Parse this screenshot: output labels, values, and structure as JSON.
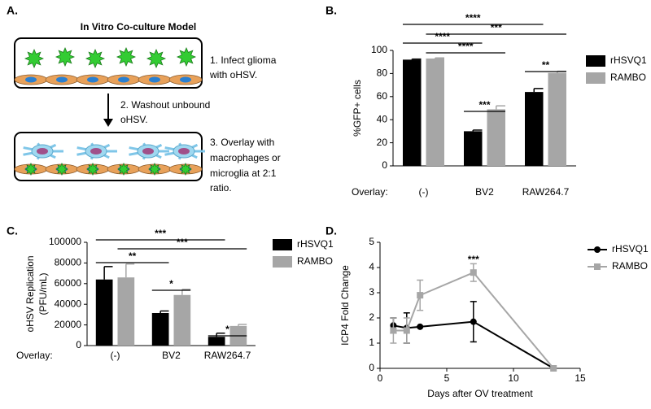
{
  "diagram": {
    "panel": "A.",
    "title": "In Vitro Co-culture Model",
    "steps": [
      [
        "1. Infect glioma",
        "with oHSV."
      ],
      [
        "2. Washout unbound",
        "oHSV."
      ],
      [
        "3. Overlay with",
        "macrophages or",
        "microglia at 2:1",
        "ratio."
      ]
    ]
  },
  "chart_data": [
    {
      "type": "bar",
      "panel": "B.",
      "ylabel": [
        "%GFP+ cells"
      ],
      "xlabel": "Overlay:",
      "categories": [
        "(-)",
        "BV2",
        "RAW264.7"
      ],
      "series": [
        {
          "name": "rHSVQ1",
          "color": "#000000",
          "values": [
            92,
            30,
            64
          ],
          "errors": [
            0.5,
            1,
            3
          ]
        },
        {
          "name": "RAMBO",
          "color": "#a6a6a6",
          "values": [
            93,
            49,
            80.5
          ],
          "errors": [
            0.5,
            3,
            1.5
          ]
        }
      ],
      "ylim": [
        0,
        100
      ],
      "yticks": [
        0,
        20,
        40,
        60,
        80,
        100
      ],
      "annotations": [
        "****",
        "***",
        "****",
        "****",
        "***",
        "**"
      ]
    },
    {
      "type": "bar",
      "panel": "C.",
      "ylabel": [
        "oHSV  Replication",
        "(PFU/mL)"
      ],
      "xlabel": "Overlay:",
      "categories": [
        "(-)",
        "BV2",
        "RAW264.7"
      ],
      "series": [
        {
          "name": "rHSVQ1",
          "color": "#000000",
          "values": [
            64000,
            31500,
            8500
          ],
          "errors": [
            12500,
            2000,
            3500
          ]
        },
        {
          "name": "RAMBO",
          "color": "#a6a6a6",
          "values": [
            66000,
            49000,
            19000
          ],
          "errors": [
            13000,
            5500,
            1500
          ]
        }
      ],
      "ylim": [
        0,
        100000
      ],
      "yticks": [
        0,
        20000,
        40000,
        60000,
        80000,
        100000
      ],
      "annotations": [
        "***",
        "***",
        "**",
        "*",
        "*"
      ]
    },
    {
      "type": "line",
      "panel": "D.",
      "ylabel": [
        "ICP4 Fold  Change"
      ],
      "xlabel": "Days after OV treatment",
      "series": [
        {
          "name": "rHSVQ1",
          "color": "#000000",
          "marker": "circle",
          "x": [
            1,
            2,
            3,
            7,
            13
          ],
          "values": [
            1.7,
            1.6,
            1.65,
            1.85,
            0
          ],
          "errors": [
            0.3,
            0.6,
            0,
            0.8,
            0
          ]
        },
        {
          "name": "RAMBO",
          "color": "#a6a6a6",
          "marker": "square",
          "x": [
            1,
            2,
            3,
            7,
            13
          ],
          "values": [
            1.5,
            1.5,
            2.9,
            3.8,
            0
          ],
          "errors": [
            0.5,
            0.5,
            0.6,
            0.35,
            0
          ]
        }
      ],
      "xlim": [
        0,
        15
      ],
      "xticks": [
        0,
        5,
        10,
        15
      ],
      "ylim": [
        0,
        5
      ],
      "yticks": [
        0,
        1,
        2,
        3,
        4,
        5
      ],
      "annotations": [
        "***"
      ]
    }
  ]
}
